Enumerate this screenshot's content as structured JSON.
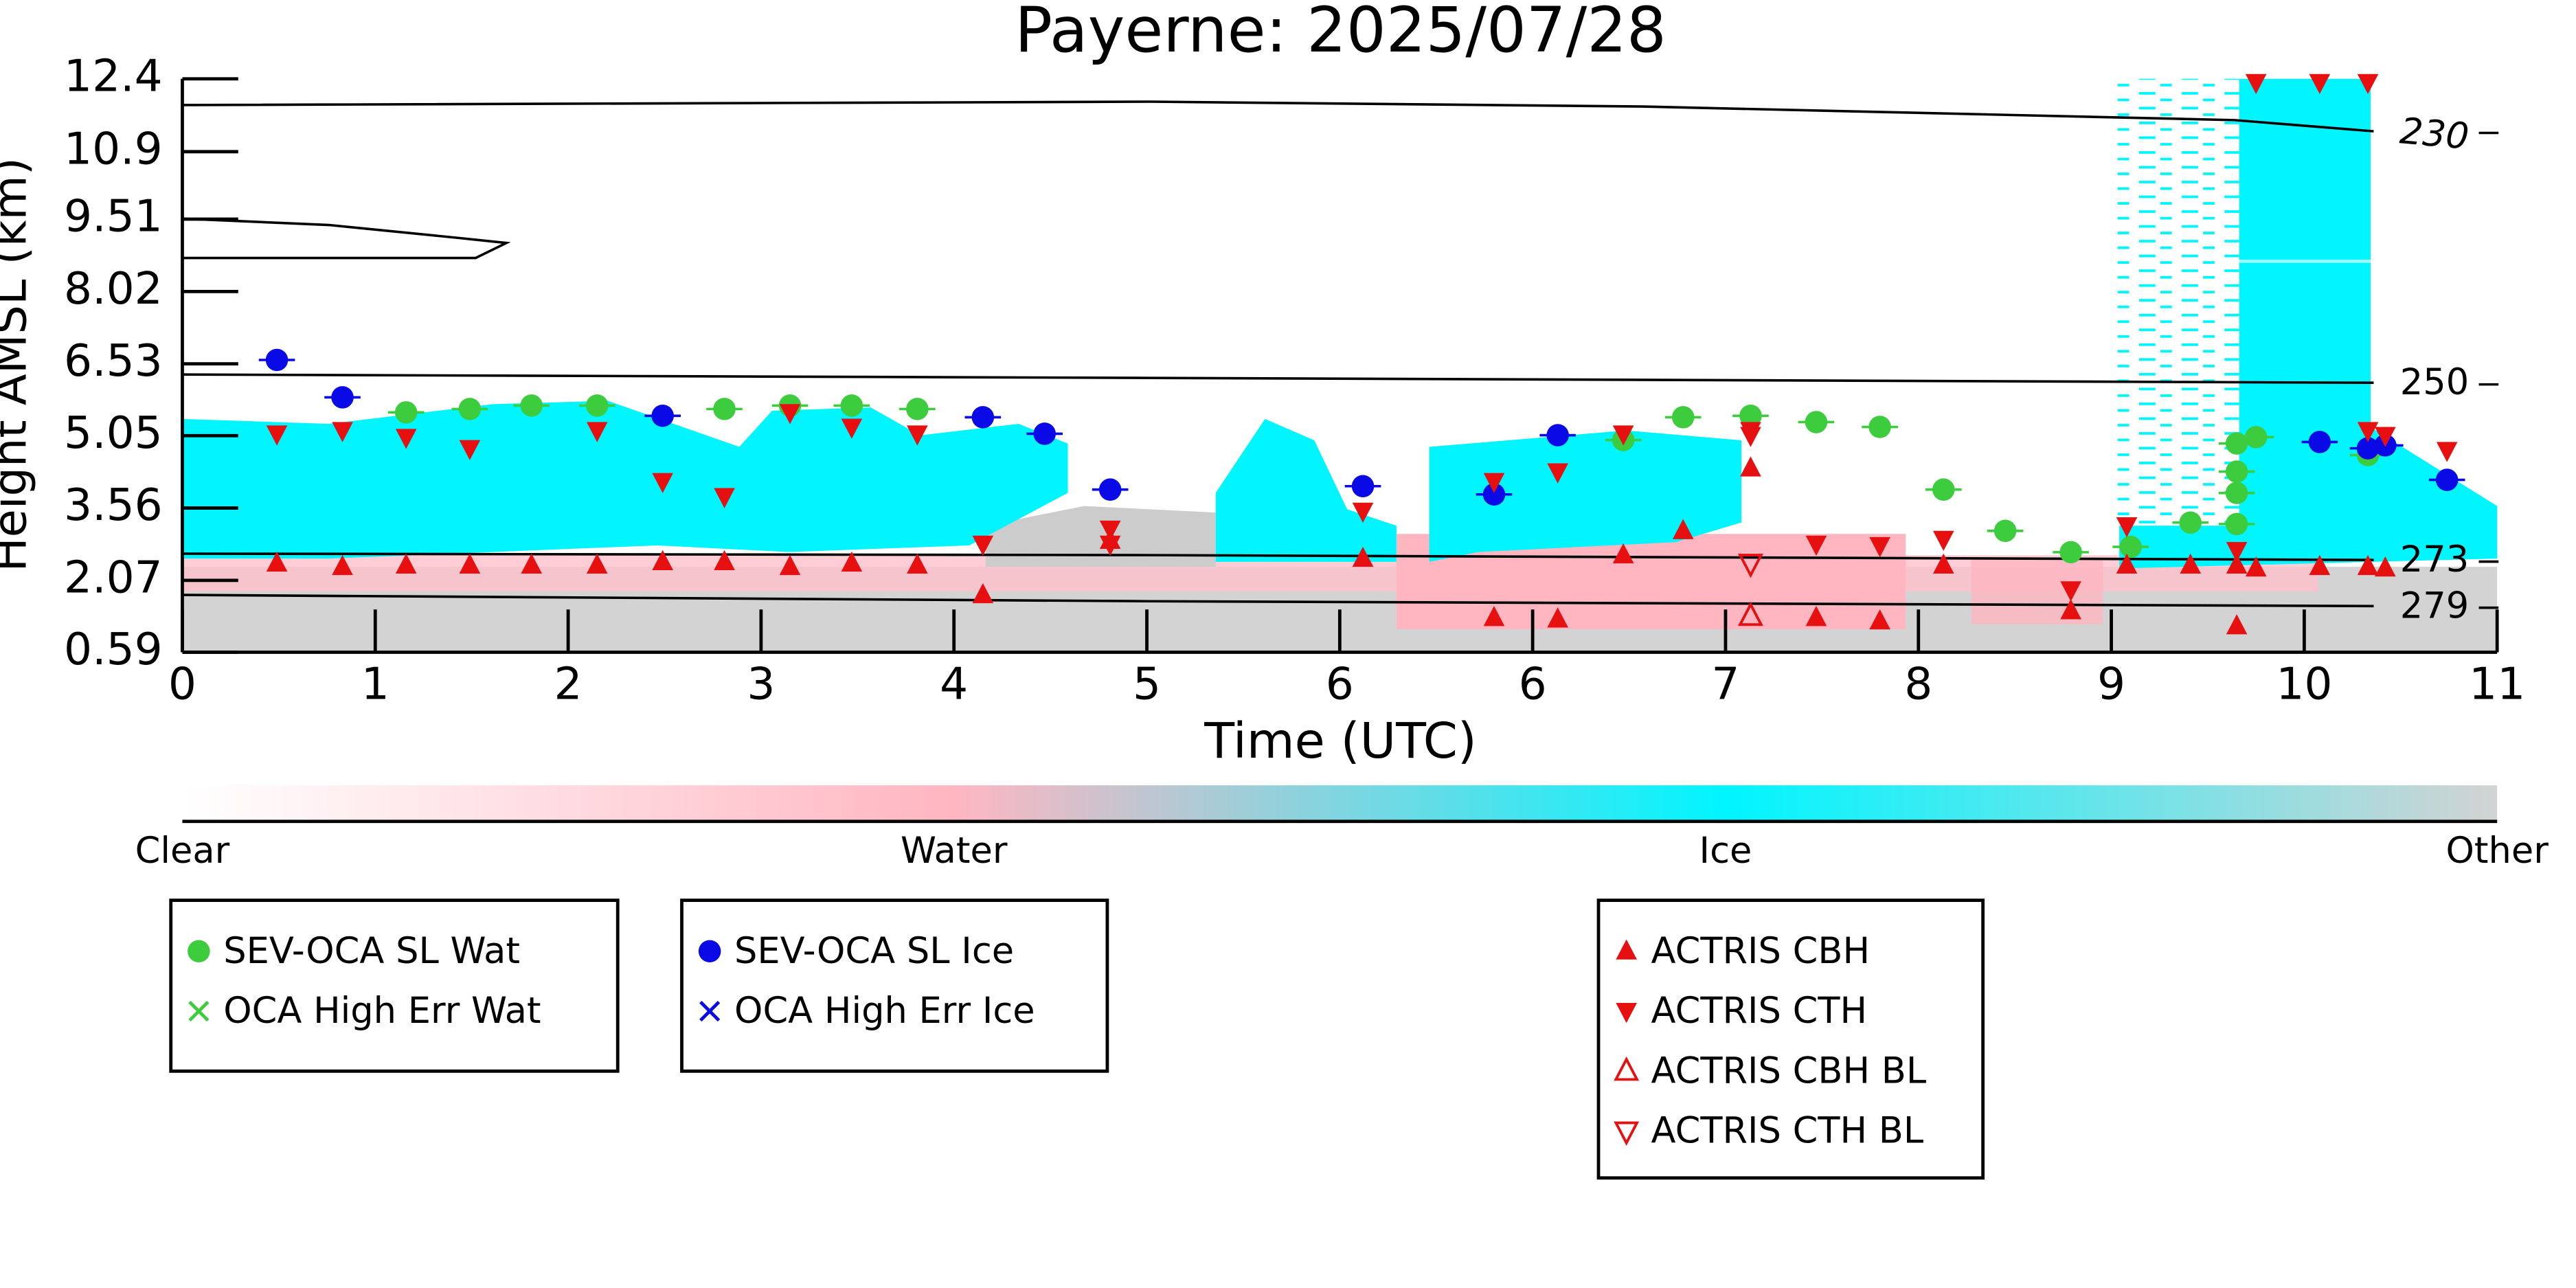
{
  "chart_data": {
    "type": "scatter",
    "title": "Payerne: 2025/07/28",
    "xlabel": "Time (UTC)",
    "ylabel": "Height AMSL (km)",
    "xlim": [
      0,
      12
    ],
    "xticks": [
      0,
      1,
      2,
      3,
      4,
      5,
      6,
      {
        "value": 7,
        "label": "6"
      },
      {
        "value": 8,
        "label": "7"
      },
      {
        "value": 9,
        "label": "8"
      },
      {
        "value": 10,
        "label": "9"
      },
      {
        "value": 11,
        "label": "10"
      },
      {
        "value": 12,
        "label": "11"
      }
    ],
    "ylim": [
      0.59,
      12.4
    ],
    "yticks": [
      0.59,
      2.07,
      3.56,
      5.05,
      6.53,
      8.02,
      9.51,
      10.9,
      12.4
    ],
    "series": [
      {
        "name": "SEV-OCA SL Wat",
        "color": "#3dcc3d",
        "marker": "circle",
        "x": [
          1.16,
          1.49,
          1.81,
          2.15,
          2.81,
          3.15,
          3.47,
          3.81,
          7.47,
          7.78,
          8.13,
          8.47,
          8.8,
          9.13,
          9.45,
          9.79,
          10.1,
          10.41,
          10.65,
          10.65,
          10.65,
          10.65,
          10.75,
          11.33
        ],
        "y": [
          5.53,
          5.6,
          5.67,
          5.67,
          5.6,
          5.67,
          5.67,
          5.6,
          4.96,
          5.43,
          5.46,
          5.33,
          5.23,
          3.94,
          3.09,
          2.65,
          2.76,
          3.26,
          3.23,
          3.87,
          4.31,
          4.89,
          5.02,
          4.65
        ]
      },
      {
        "name": "OCA High Err Wat",
        "color": "#3dcc3d",
        "marker": "x",
        "x": [],
        "y": []
      },
      {
        "name": "SEV-OCA SL Ice",
        "color": "#0a0ae6",
        "marker": "circle",
        "x": [
          0.49,
          0.83,
          2.49,
          4.15,
          4.47,
          4.81,
          6.12,
          6.8,
          7.13,
          11.08,
          11.33,
          11.42,
          11.74
        ],
        "y": [
          6.61,
          5.84,
          5.46,
          5.43,
          5.09,
          3.94,
          4.01,
          3.84,
          5.06,
          4.92,
          4.79,
          4.85,
          4.14
        ]
      },
      {
        "name": "OCA High Err Ice",
        "color": "#0a0ae6",
        "marker": "x",
        "x": [],
        "y": []
      },
      {
        "name": "ACTRIS CBH",
        "color": "#e61010",
        "marker": "triangle-up",
        "x": [
          0.49,
          0.83,
          1.16,
          1.49,
          1.81,
          2.15,
          2.49,
          2.81,
          3.15,
          3.47,
          3.81,
          4.15,
          4.81,
          6.12,
          6.8,
          7.13,
          7.47,
          7.78,
          8.13,
          8.47,
          8.8,
          9.13,
          9.79,
          10.08,
          10.41,
          10.65,
          10.75,
          11.08,
          11.33,
          11.42,
          10.65
        ],
        "y": [
          2.42,
          2.35,
          2.38,
          2.38,
          2.38,
          2.38,
          2.45,
          2.45,
          2.35,
          2.42,
          2.38,
          1.77,
          2.89,
          2.52,
          1.3,
          1.27,
          2.59,
          3.09,
          4.38,
          1.3,
          1.23,
          2.38,
          1.44,
          2.38,
          2.38,
          2.38,
          2.32,
          2.35,
          2.35,
          2.32,
          1.13
        ]
      },
      {
        "name": "ACTRIS CTH",
        "color": "#e61010",
        "marker": "triangle-down",
        "x": [
          0.49,
          0.83,
          1.16,
          1.49,
          2.15,
          2.49,
          2.81,
          3.15,
          3.47,
          3.81,
          4.15,
          4.81,
          4.81,
          6.12,
          6.8,
          7.13,
          7.47,
          8.13,
          8.13,
          8.47,
          8.8,
          9.13,
          9.79,
          10.08,
          10.65,
          10.75,
          11.08,
          11.33,
          11.33,
          11.42,
          11.74
        ],
        "y": [
          5.09,
          5.16,
          5.02,
          4.79,
          5.16,
          4.11,
          3.8,
          5.53,
          5.23,
          5.09,
          2.82,
          3.13,
          2.82,
          3.5,
          4.11,
          4.31,
          5.09,
          5.16,
          5.06,
          2.82,
          2.79,
          2.92,
          1.88,
          3.2,
          2.69,
          12.33,
          12.33,
          12.33,
          5.16,
          5.06,
          4.75
        ]
      },
      {
        "name": "ACTRIS CBH BL",
        "color": "#e61010",
        "marker": "triangle-up-open",
        "x": [
          8.13
        ],
        "y": [
          1.33
        ]
      },
      {
        "name": "ACTRIS CTH BL",
        "color": "#e61010",
        "marker": "triangle-down-open",
        "x": [
          8.13
        ],
        "y": [
          2.42
        ]
      }
    ],
    "contours": [
      {
        "label": "230",
        "x": [
          0,
          5.02,
          7.57,
          10.64,
          11.36
        ],
        "y": [
          11.86,
          11.93,
          11.83,
          11.55,
          11.32
        ]
      },
      {
        "label": "250",
        "x": [
          0,
          5.02,
          11.36
        ],
        "y": [
          6.31,
          6.24,
          6.14
        ]
      },
      {
        "label": "273",
        "x": [
          0,
          5.02,
          11.36
        ],
        "y": [
          2.62,
          2.59,
          2.49
        ]
      },
      {
        "label": "279",
        "x": [
          0,
          5.02,
          11.36
        ],
        "y": [
          1.77,
          1.64,
          1.54
        ]
      },
      {
        "x": [
          0,
          0.76,
          1.44,
          1.68,
          1.52,
          0
        ],
        "y": [
          9.52,
          9.39,
          9.12,
          9.02,
          8.71,
          8.71
        ]
      }
    ],
    "colorbar": {
      "labels": [
        "Clear",
        "Water",
        "Ice",
        "Other"
      ],
      "colors": [
        "#ffffff",
        "#ffb6c1",
        "#00f5ff",
        "#d3d3d3"
      ]
    }
  }
}
